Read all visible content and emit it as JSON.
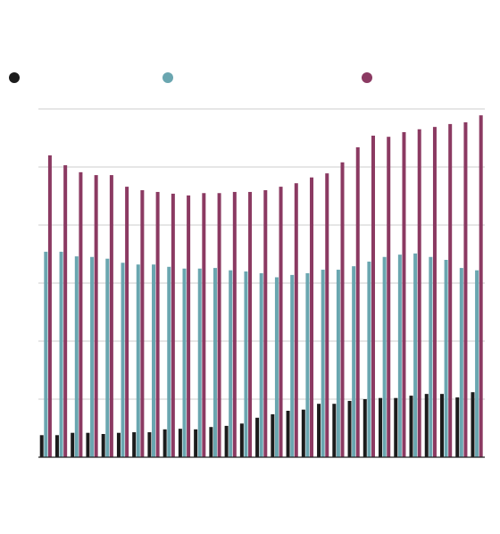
{
  "chart_data": {
    "type": "bar",
    "grid": true,
    "categories": [
      null,
      null,
      null,
      null,
      null,
      null,
      null,
      null,
      null,
      null,
      null,
      null,
      null,
      null,
      null,
      null,
      null,
      null,
      null,
      null,
      null,
      null,
      null,
      null,
      null,
      null,
      null,
      null,
      null
    ],
    "ylim": [
      0,
      60
    ],
    "yticks": [
      0,
      10,
      20,
      30,
      40,
      50,
      60
    ],
    "series": [
      {
        "color": "#1c1c1c",
        "values": [
          3.8,
          3.8,
          4.2,
          4.2,
          4.0,
          4.2,
          4.3,
          4.3,
          4.8,
          4.9,
          4.8,
          5.2,
          5.4,
          5.8,
          6.8,
          7.4,
          8.0,
          8.2,
          9.2,
          9.2,
          9.7,
          10.0,
          10.2,
          10.2,
          10.6,
          10.9,
          10.9,
          10.3,
          11.2
        ]
      },
      {
        "color": "#6aa6b0",
        "values": [
          35.4,
          35.4,
          34.6,
          34.5,
          34.2,
          33.5,
          33.2,
          33.2,
          32.8,
          32.5,
          32.5,
          32.6,
          32.2,
          32.0,
          31.7,
          31.0,
          31.4,
          31.7,
          32.3,
          32.3,
          32.9,
          33.7,
          34.5,
          34.9,
          35.1,
          34.5,
          34.0,
          32.6,
          32.2
        ]
      },
      {
        "color": "#8b3a62",
        "values": [
          52.0,
          50.3,
          49.1,
          48.6,
          48.6,
          46.6,
          46.0,
          45.7,
          45.4,
          45.1,
          45.5,
          45.5,
          45.7,
          45.7,
          46.0,
          46.6,
          47.2,
          48.2,
          48.9,
          50.8,
          53.4,
          55.4,
          55.2,
          56.0,
          56.5,
          56.9,
          57.4,
          57.7,
          58.9
        ]
      }
    ]
  }
}
